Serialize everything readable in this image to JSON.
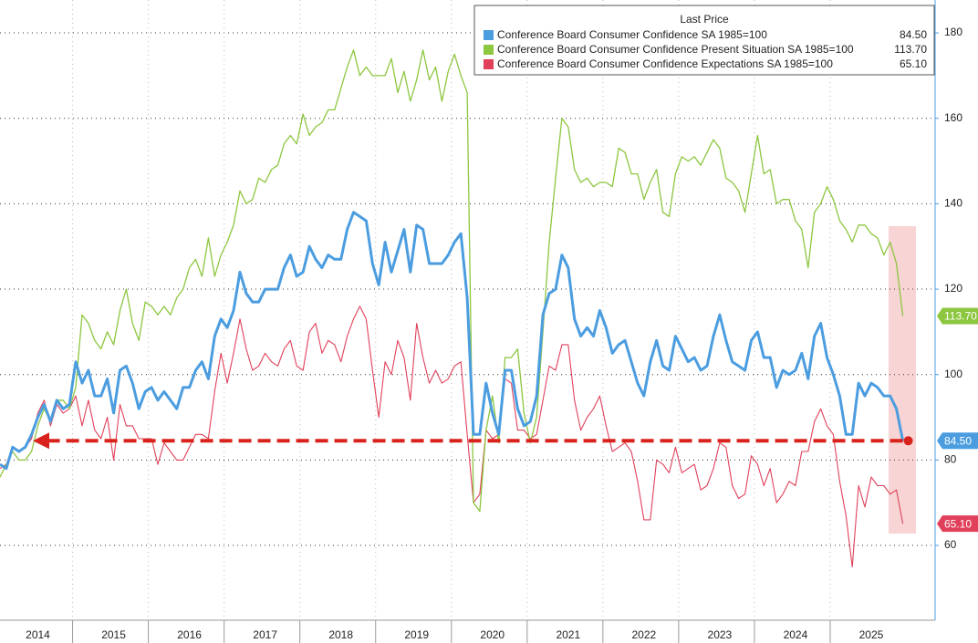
{
  "chart_data": {
    "type": "line",
    "legend_title": "Last Price",
    "categories": [
      null,
      null,
      null,
      null,
      null,
      null,
      "2014",
      null,
      null,
      null,
      null,
      null,
      null,
      null,
      null,
      null,
      null,
      null,
      "2015",
      null,
      null,
      null,
      null,
      null,
      null,
      null,
      null,
      null,
      null,
      null,
      "2016",
      null,
      null,
      null,
      null,
      null,
      null,
      null,
      null,
      null,
      null,
      null,
      "2017",
      null,
      null,
      null,
      null,
      null,
      null,
      null,
      null,
      null,
      null,
      null,
      "2018",
      null,
      null,
      null,
      null,
      null,
      null,
      null,
      null,
      null,
      null,
      null,
      "2019",
      null,
      null,
      null,
      null,
      null,
      null,
      null,
      null,
      null,
      null,
      null,
      "2020",
      null,
      null,
      null,
      null,
      null,
      null,
      null,
      null,
      null,
      null,
      null,
      "2021",
      null,
      null,
      null,
      null,
      null,
      null,
      null,
      null,
      null,
      null,
      null,
      "2022",
      null,
      null,
      null,
      null,
      null,
      null,
      null,
      null,
      null,
      null,
      null,
      "2023",
      null,
      null,
      null,
      null,
      null,
      null,
      null,
      null,
      null,
      null,
      null,
      "2024",
      null,
      null,
      null,
      null,
      null,
      null,
      null,
      null,
      null,
      null,
      null,
      "2025",
      null,
      null,
      null,
      null,
      null
    ],
    "series": [
      {
        "name": "Conference Board Consumer Confidence SA 1985=100",
        "color": "#4b9de0",
        "width": 3,
        "value_label": "84.50",
        "values": [
          79,
          78,
          83,
          82,
          83,
          86,
          90,
          93,
          89,
          94,
          92,
          93,
          103,
          98,
          101,
          95,
          95,
          99,
          91,
          101,
          102,
          98,
          92,
          96,
          97,
          94,
          96,
          94,
          92,
          97,
          97,
          101,
          103,
          99,
          109,
          113,
          111,
          115,
          124,
          119,
          117,
          117,
          120,
          120,
          120,
          125,
          128,
          123,
          124,
          130,
          127,
          125,
          128,
          127,
          127,
          134,
          138,
          137,
          136,
          126,
          121,
          131,
          124,
          129,
          134,
          124,
          135,
          134,
          126,
          126,
          126,
          128,
          131,
          133,
          118,
          86,
          86,
          98,
          91,
          86,
          101,
          101,
          92,
          88,
          89,
          95,
          114,
          119,
          120,
          128,
          125,
          113,
          109,
          111,
          109,
          115,
          111,
          105,
          107,
          108,
          103,
          98,
          95,
          103,
          108,
          102,
          101,
          109,
          106,
          103,
          104,
          101,
          102,
          109,
          114,
          108,
          103,
          102,
          101,
          108,
          110,
          104,
          104,
          97,
          101,
          100,
          101,
          105,
          99,
          109,
          112,
          104,
          100,
          95,
          86,
          86,
          98,
          95,
          98,
          97,
          95,
          95,
          92,
          84.5
        ]
      },
      {
        "name": "Conference Board Consumer Confidence Present Situation SA 1985=100",
        "color": "#8dc63f",
        "width": 1.3,
        "value_label": "113.70",
        "values": [
          76,
          79,
          82,
          80,
          80,
          82,
          88,
          92,
          89,
          94,
          94,
          92,
          97,
          114,
          112,
          108,
          106,
          110,
          107,
          115,
          120,
          112,
          108,
          117,
          116,
          114,
          116,
          114,
          118,
          120,
          125,
          127,
          123,
          132,
          123,
          128,
          131,
          135,
          143,
          140,
          141,
          146,
          145,
          148,
          149,
          154,
          156,
          154,
          161,
          156,
          158,
          159,
          162,
          162,
          167,
          172,
          176,
          170,
          172,
          170,
          170,
          170,
          174,
          166,
          171,
          164,
          169,
          176,
          169,
          172,
          164,
          171,
          175,
          170,
          166,
          70,
          68,
          87,
          95,
          84,
          104,
          104,
          106,
          91,
          84,
          90,
          110,
          131,
          146,
          160,
          158,
          148,
          145,
          146,
          144,
          145,
          145,
          144,
          153,
          152,
          147,
          147,
          141,
          145,
          148,
          138,
          137,
          147,
          151,
          150,
          151,
          149,
          152,
          155,
          153,
          146,
          145,
          143,
          138,
          147,
          156,
          147,
          148,
          140,
          141,
          141,
          136,
          134,
          125,
          138,
          140,
          144,
          141,
          136,
          134,
          131,
          135,
          135,
          133,
          132,
          128,
          131,
          126,
          113.7
        ]
      },
      {
        "name": "Conference Board Consumer Confidence Expectations SA 1985=100",
        "color": "#e0405a",
        "width": 1.1,
        "value_label": "65.10",
        "values": [
          78,
          79,
          83,
          82,
          83,
          85,
          91,
          94,
          88,
          93,
          91,
          92,
          95,
          88,
          94,
          87,
          85,
          90,
          80,
          93,
          88,
          88,
          85,
          85,
          85,
          79,
          84,
          82,
          80,
          80,
          83,
          86,
          86,
          85,
          96,
          105,
          98,
          105,
          113,
          106,
          101,
          102,
          105,
          103,
          102,
          106,
          108,
          102,
          101,
          110,
          112,
          105,
          108,
          107,
          103,
          109,
          113,
          116,
          113,
          101,
          90,
          103,
          100,
          108,
          104,
          94,
          112,
          104,
          98,
          101,
          98,
          99,
          102,
          103,
          86,
          70,
          72,
          87,
          85,
          86,
          99,
          98,
          87,
          87,
          85,
          86,
          94,
          102,
          101,
          107,
          107,
          94,
          87,
          90,
          92,
          95,
          88,
          82,
          83,
          84,
          82,
          75,
          66,
          66,
          80,
          79,
          77,
          83,
          77,
          78,
          79,
          73,
          74,
          78,
          84,
          83,
          74,
          71,
          72,
          81,
          79,
          74,
          78,
          70,
          72,
          75,
          74,
          82,
          82,
          89,
          92,
          88,
          86,
          75,
          67,
          55,
          74,
          69,
          76,
          74,
          74,
          72,
          73,
          65.1
        ]
      }
    ],
    "ylim": [
      42.5,
      187.7
    ],
    "yticks": [
      60,
      80,
      100,
      120,
      140,
      160,
      180
    ],
    "grid": true,
    "reference_color": "#d9221c"
  }
}
